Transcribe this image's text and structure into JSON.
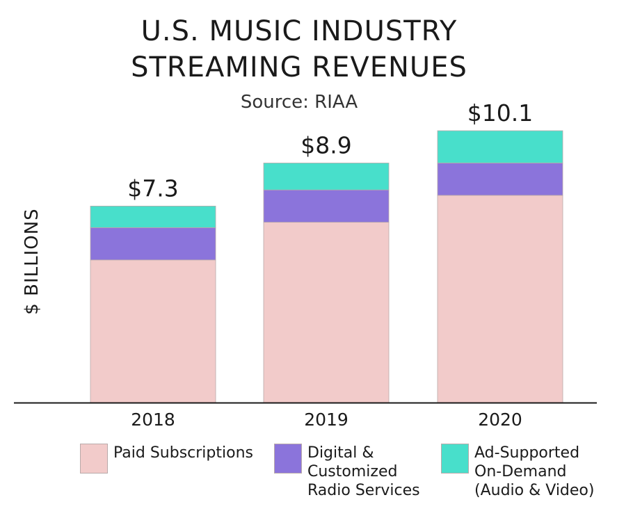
{
  "title_line1": "U.S. MUSIC INDUSTRY",
  "title_line2": "STREAMING REVENUES",
  "subtitle": "Source: RIAA",
  "colors": {
    "paid": "#f2cbca",
    "digital": "#8b74db",
    "ad": "#48dfcb",
    "axis": "#1a1a1a"
  },
  "legend": [
    {
      "label": "Paid Subscriptions",
      "color": "#f2cbca"
    },
    {
      "label": "Digital &\nCustomized\nRadio Services",
      "color": "#8b74db"
    },
    {
      "label": "Ad-Supported\nOn-Demand\n(Audio & Video)",
      "color": "#48dfcb"
    }
  ],
  "chart_data": {
    "type": "bar",
    "stacked": true,
    "title": "U.S. MUSIC INDUSTRY STREAMING REVENUES",
    "subtitle": "Source: RIAA",
    "ylabel": "$ BILLIONS",
    "xlabel": "",
    "categories": [
      "2018",
      "2019",
      "2020"
    ],
    "series": [
      {
        "name": "Paid Subscriptions",
        "values": [
          5.3,
          6.7,
          7.7
        ]
      },
      {
        "name": "Digital & Customized Radio Services",
        "values": [
          1.2,
          1.2,
          1.2
        ]
      },
      {
        "name": "Ad-Supported On-Demand (Audio & Video)",
        "values": [
          0.8,
          1.0,
          1.2
        ]
      }
    ],
    "total_labels": [
      "$7.3",
      "$8.9",
      "$10.1"
    ],
    "ylim": [
      0,
      10.1
    ],
    "grid": false
  }
}
